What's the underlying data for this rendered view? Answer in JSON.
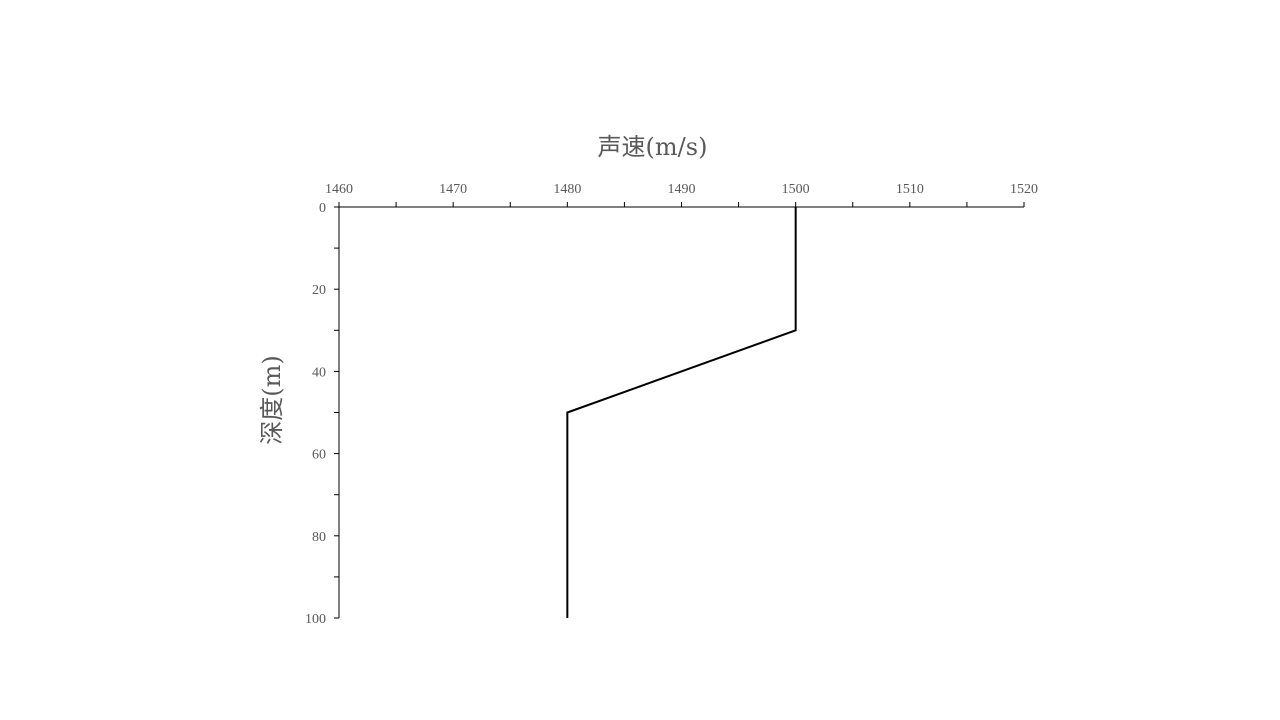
{
  "chart_data": {
    "type": "line",
    "xlabel": "声速(m/s)",
    "ylabel": "深度(m)",
    "x_axis_position": "top",
    "y_axis_inverted": true,
    "xlim": [
      1460,
      1520
    ],
    "ylim": [
      0,
      100
    ],
    "x_major_ticks": [
      1460,
      1470,
      1480,
      1490,
      1500,
      1510,
      1520
    ],
    "x_minor_step": 5,
    "y_major_ticks": [
      0,
      20,
      40,
      60,
      80,
      100
    ],
    "y_minor_step": 10,
    "grid": false,
    "series": [
      {
        "x": [
          1500,
          1500,
          1480,
          1480
        ],
        "y": [
          0,
          30,
          50,
          100
        ],
        "color": "#000000"
      }
    ]
  }
}
